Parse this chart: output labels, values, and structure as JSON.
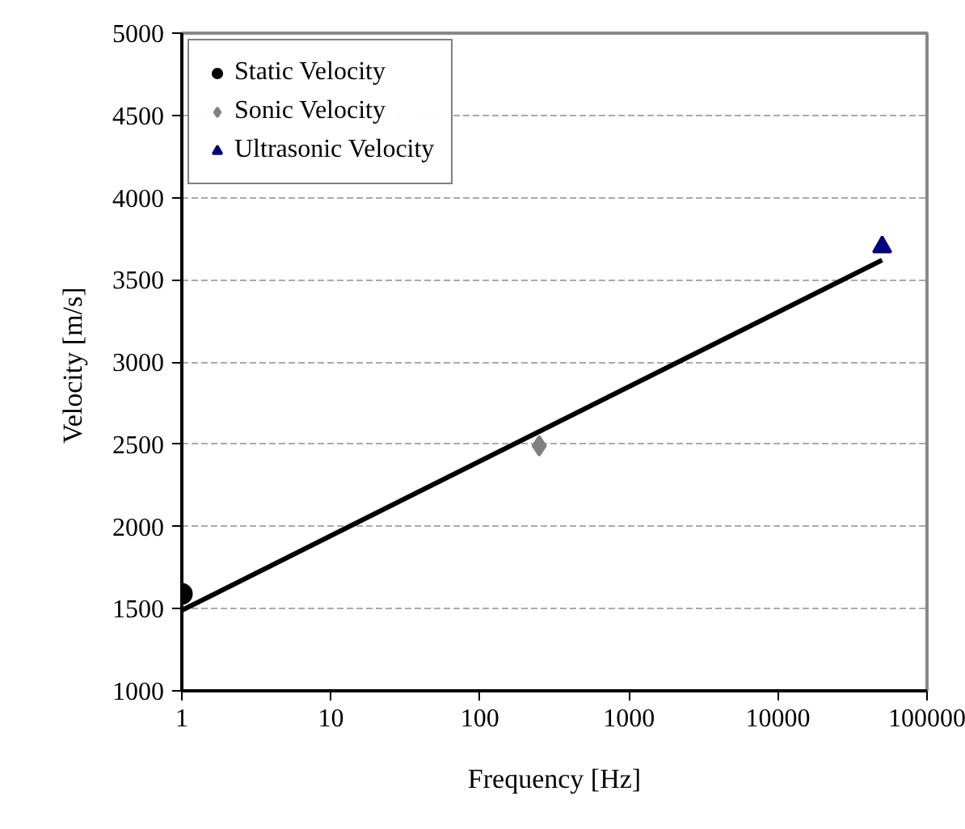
{
  "chart_data": {
    "type": "scatter",
    "xlabel": "Frequency [Hz]",
    "ylabel": "Velocity  [m/s]",
    "log": "x",
    "xlim": [
      1,
      100000
    ],
    "xticks": [
      1,
      10,
      100,
      1000,
      10000,
      100000
    ],
    "ylim": [
      1000,
      5000
    ],
    "yticks": [
      1000,
      1500,
      2000,
      2500,
      3000,
      3500,
      4000,
      4500,
      5000
    ],
    "grid": "y",
    "legend": "top left",
    "series": [
      {
        "name": "Static Velocity",
        "color": "#000000",
        "marker": "circle",
        "x": [
          1
        ],
        "values": [
          1590
        ]
      },
      {
        "name": "Sonic Velocity",
        "color": "#808080",
        "marker": "diamond",
        "x": [
          250
        ],
        "values": [
          2490
        ]
      },
      {
        "name": "Ultrasonic Velocity",
        "color": "#000080",
        "marker": "triangle",
        "x": [
          50000
        ],
        "values": [
          3700
        ]
      },
      {
        "type": "line",
        "color": "#000000",
        "line_style": "solid",
        "x": [
          1,
          50000
        ],
        "values": [
          1490,
          3620
        ]
      }
    ]
  }
}
